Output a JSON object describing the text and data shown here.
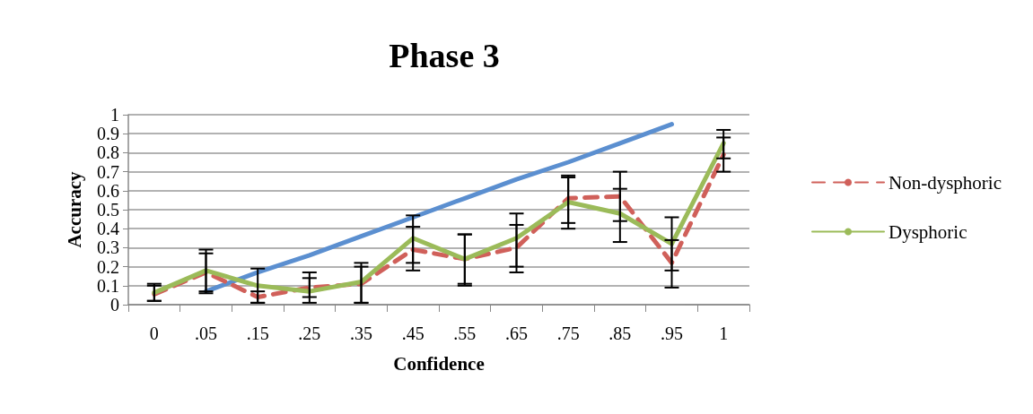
{
  "chart_data": {
    "type": "line",
    "title": "Phase 3",
    "xlabel": "Confidence",
    "ylabel": "Accuracy",
    "categories": [
      "0",
      ".05",
      ".15",
      ".25",
      ".35",
      ".45",
      ".55",
      ".65",
      ".75",
      ".85",
      ".95",
      "1"
    ],
    "series": [
      {
        "color": "#5b8fd0",
        "values": [
          null,
          0.07,
          0.17,
          0.26,
          0.36,
          0.46,
          0.56,
          0.66,
          0.75,
          0.85,
          0.95,
          null
        ]
      },
      {
        "name": "Non-dysphoric",
        "color": "#d0605a",
        "line_style": "dashed",
        "values": [
          0.055,
          0.17,
          0.04,
          0.09,
          0.11,
          0.29,
          0.24,
          0.3,
          0.56,
          0.57,
          0.22,
          0.79
        ],
        "errors": [
          [
            0.02,
            0.1
          ],
          [
            0.07,
            0.27
          ],
          [
            0.01,
            0.07
          ],
          [
            0.04,
            0.14
          ],
          [
            0.01,
            0.2
          ],
          [
            0.18,
            0.41
          ],
          [
            0.11,
            0.37
          ],
          [
            0.2,
            0.42
          ],
          [
            0.43,
            0.68
          ],
          [
            0.44,
            0.7
          ],
          [
            0.09,
            0.34
          ],
          [
            0.7,
            0.88
          ]
        ]
      },
      {
        "name": "Dysphoric",
        "color": "#9bbb59",
        "line_style": "solid",
        "values": [
          0.063,
          0.18,
          0.1,
          0.07,
          0.12,
          0.35,
          0.24,
          0.35,
          0.54,
          0.48,
          0.32,
          0.85
        ],
        "errors": [
          [
            0.02,
            0.11
          ],
          [
            0.06,
            0.29
          ],
          [
            0.01,
            0.19
          ],
          [
            0.01,
            0.17
          ],
          [
            0.01,
            0.22
          ],
          [
            0.22,
            0.47
          ],
          [
            0.1,
            0.37
          ],
          [
            0.17,
            0.48
          ],
          [
            0.4,
            0.67
          ],
          [
            0.33,
            0.61
          ],
          [
            0.18,
            0.46
          ],
          [
            0.77,
            0.92
          ]
        ]
      }
    ],
    "ylim": [
      0,
      1
    ],
    "yticks": [
      0,
      0.1,
      0.2,
      0.3,
      0.4,
      0.5,
      0.6,
      0.7,
      0.8,
      0.9,
      1
    ],
    "grid": "y",
    "legend": "right",
    "marker": "none"
  }
}
